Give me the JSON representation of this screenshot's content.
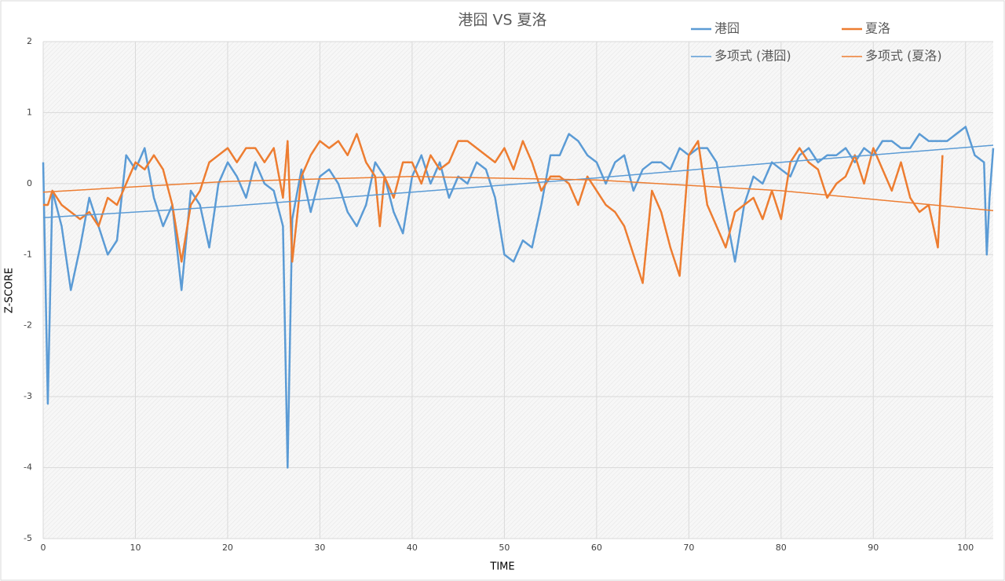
{
  "chart_data": {
    "type": "line",
    "title": "港囧 VS 夏洛",
    "x_label": "TIME",
    "y_label": "Z-SCORE",
    "xlim": [
      0,
      103
    ],
    "ylim": [
      -5,
      2
    ],
    "xticks": [
      0,
      10,
      20,
      30,
      40,
      50,
      60,
      70,
      80,
      90,
      100
    ],
    "yticks": [
      -5,
      -4,
      -3,
      -2,
      -1,
      0,
      1,
      2
    ],
    "grid": true,
    "legend": "top-right",
    "series": [
      {
        "name": "港囧",
        "color": "#5b9bd5",
        "width": 2.5,
        "x": [
          0,
          0.5,
          1,
          2,
          3,
          4,
          5,
          6,
          7,
          8,
          9,
          10,
          11,
          12,
          13,
          14,
          15,
          16,
          17,
          18,
          19,
          20,
          21,
          22,
          23,
          24,
          25,
          26,
          26.5,
          27,
          28,
          29,
          30,
          31,
          32,
          33,
          34,
          35,
          36,
          36.5,
          37,
          38,
          39,
          40,
          41,
          42,
          43,
          44,
          45,
          46,
          47,
          48,
          49,
          50,
          51,
          52,
          53,
          54,
          55,
          56,
          57,
          58,
          59,
          60,
          61,
          62,
          63,
          64,
          65,
          66,
          67,
          68,
          69,
          70,
          71,
          72,
          73,
          74,
          75,
          76,
          77,
          78,
          79,
          80,
          81,
          82,
          83,
          84,
          85,
          86,
          87,
          88,
          89,
          90,
          91,
          92,
          93,
          94,
          95,
          96,
          97,
          97.5,
          98,
          99,
          100,
          101,
          102,
          102.3,
          102.6,
          103
        ],
        "values": [
          0.3,
          -3.1,
          -0.1,
          -0.6,
          -1.5,
          -0.9,
          -0.2,
          -0.6,
          -1.0,
          -0.8,
          0.4,
          0.2,
          0.5,
          -0.2,
          -0.6,
          -0.3,
          -1.5,
          -0.1,
          -0.3,
          -0.9,
          0.0,
          0.3,
          0.1,
          -0.2,
          0.3,
          0.0,
          -0.1,
          -0.6,
          -4.0,
          -0.5,
          0.2,
          -0.4,
          0.1,
          0.2,
          0.0,
          -0.4,
          -0.6,
          -0.3,
          0.3,
          0.2,
          0.1,
          -0.4,
          -0.7,
          0.1,
          0.4,
          0.0,
          0.3,
          -0.2,
          0.1,
          0.0,
          0.3,
          0.2,
          -0.2,
          -1.0,
          -1.1,
          -0.8,
          -0.9,
          -0.3,
          0.4,
          0.4,
          0.7,
          0.6,
          0.4,
          0.3,
          0.0,
          0.3,
          0.4,
          -0.1,
          0.2,
          0.3,
          0.3,
          0.2,
          0.5,
          0.4,
          0.5,
          0.5,
          0.3,
          -0.4,
          -1.1,
          -0.3,
          0.1,
          0.0,
          0.3,
          0.2,
          0.1,
          0.4,
          0.5,
          0.3,
          0.4,
          0.4,
          0.5,
          0.3,
          0.5,
          0.4,
          0.6,
          0.6,
          0.5,
          0.5,
          0.7,
          0.6,
          0.6,
          0.6,
          0.6,
          0.7,
          0.8,
          0.4,
          0.3,
          -1.0,
          -0.2,
          0.5
        ]
      },
      {
        "name": "夏洛",
        "color": "#ed7d31",
        "width": 2.5,
        "x": [
          0,
          0.5,
          1,
          2,
          3,
          4,
          5,
          6,
          7,
          8,
          9,
          10,
          11,
          12,
          13,
          14,
          15,
          16,
          17,
          18,
          19,
          20,
          21,
          22,
          23,
          24,
          25,
          26,
          26.5,
          27,
          28,
          29,
          30,
          31,
          32,
          33,
          34,
          35,
          36,
          36.5,
          37,
          38,
          39,
          40,
          41,
          42,
          43,
          44,
          45,
          46,
          47,
          48,
          49,
          50,
          51,
          52,
          53,
          54,
          55,
          56,
          57,
          58,
          59,
          60,
          61,
          62,
          63,
          64,
          65,
          66,
          67,
          68,
          69,
          70,
          71,
          72,
          73,
          74,
          75,
          76,
          77,
          78,
          79,
          80,
          81,
          82,
          83,
          84,
          85,
          86,
          87,
          88,
          89,
          90,
          91,
          92,
          93,
          94,
          95,
          96,
          97,
          97.5
        ],
        "values": [
          -0.3,
          -0.3,
          -0.1,
          -0.3,
          -0.4,
          -0.5,
          -0.4,
          -0.6,
          -0.2,
          -0.3,
          0.0,
          0.3,
          0.2,
          0.4,
          0.2,
          -0.3,
          -1.1,
          -0.3,
          -0.1,
          0.3,
          0.4,
          0.5,
          0.3,
          0.5,
          0.5,
          0.3,
          0.5,
          -0.2,
          0.6,
          -1.1,
          0.1,
          0.4,
          0.6,
          0.5,
          0.6,
          0.4,
          0.7,
          0.3,
          0.1,
          -0.6,
          0.1,
          -0.2,
          0.3,
          0.3,
          0.0,
          0.4,
          0.2,
          0.3,
          0.6,
          0.6,
          0.5,
          0.4,
          0.3,
          0.5,
          0.2,
          0.6,
          0.3,
          -0.1,
          0.1,
          0.1,
          0.0,
          -0.3,
          0.1,
          -0.1,
          -0.3,
          -0.4,
          -0.6,
          -1.0,
          -1.4,
          -0.1,
          -0.4,
          -0.9,
          -1.3,
          0.4,
          0.6,
          -0.3,
          -0.6,
          -0.9,
          -0.4,
          -0.3,
          -0.2,
          -0.5,
          -0.1,
          -0.5,
          0.3,
          0.5,
          0.3,
          0.2,
          -0.2,
          0.0,
          0.1,
          0.4,
          0.0,
          0.5,
          0.2,
          -0.1,
          0.3,
          -0.2,
          -0.4,
          -0.3,
          -0.9,
          0.4
        ]
      },
      {
        "name": "多项式 (港囧)",
        "color": "#5b9bd5",
        "width": 1.5,
        "x": [
          0,
          20,
          40,
          60,
          80,
          103
        ],
        "values": [
          -0.48,
          -0.32,
          -0.12,
          0.08,
          0.3,
          0.54
        ]
      },
      {
        "name": "多项式 (夏洛)",
        "color": "#ed7d31",
        "width": 1.5,
        "x": [
          0,
          20,
          40,
          60,
          80,
          103
        ],
        "values": [
          -0.12,
          0.03,
          0.1,
          0.05,
          -0.1,
          -0.38
        ]
      }
    ]
  }
}
